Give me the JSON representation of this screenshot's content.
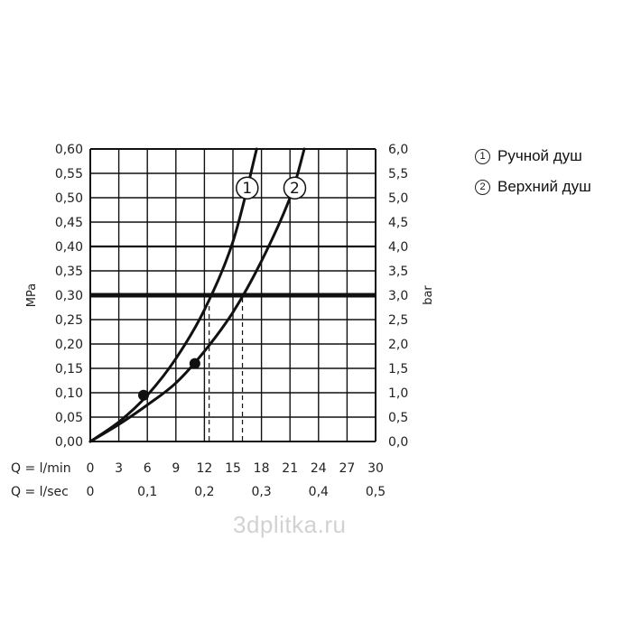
{
  "chart_data": {
    "type": "line",
    "ylabel_left": "MPa",
    "ylabel_right": "bar",
    "x_row1_label": "Q = l/min",
    "x_row2_label": "Q = l/sec",
    "x_ticks_lmin": [
      "0",
      "3",
      "6",
      "9",
      "12",
      "15",
      "18",
      "21",
      "24",
      "27",
      "30"
    ],
    "x_ticks_lsec": [
      {
        "v": 0,
        "label": "0"
      },
      {
        "v": 0.1,
        "label": "0,1"
      },
      {
        "v": 0.2,
        "label": "0,2"
      },
      {
        "v": 0.3,
        "label": "0,3"
      },
      {
        "v": 0.4,
        "label": "0,4"
      },
      {
        "v": 0.5,
        "label": "0,5"
      }
    ],
    "y_ticks_mpa": [
      "0,00",
      "0,05",
      "0,10",
      "0,15",
      "0,20",
      "0,25",
      "0,30",
      "0,35",
      "0,40",
      "0,45",
      "0,50",
      "0,55",
      "0,60"
    ],
    "y_ticks_bar": [
      "0,0",
      "0,5",
      "1,0",
      "1,5",
      "2,0",
      "2,5",
      "3,0",
      "3,5",
      "4,0",
      "4,5",
      "5,0",
      "5,5",
      "6,0"
    ],
    "xlim": [
      0,
      30
    ],
    "ylim": [
      0,
      0.6
    ],
    "major_y_lines": [
      0.4
    ],
    "reference_line_y": 0.3,
    "series": [
      {
        "name": "1",
        "x": [
          0,
          3,
          6,
          9,
          12,
          15,
          17.5
        ],
        "y": [
          0,
          0.04,
          0.095,
          0.17,
          0.27,
          0.41,
          0.6
        ],
        "marker": {
          "x": 5.6,
          "y": 0.095
        },
        "at_reference_x": 12.5,
        "label_at": {
          "x": 16.5,
          "y": 0.52
        }
      },
      {
        "name": "2",
        "x": [
          0,
          3,
          6,
          9,
          12,
          15,
          18,
          21,
          22.5
        ],
        "y": [
          0,
          0.035,
          0.075,
          0.12,
          0.185,
          0.265,
          0.37,
          0.5,
          0.6
        ],
        "marker": {
          "x": 11,
          "y": 0.16
        },
        "at_reference_x": 16,
        "label_at": {
          "x": 21.5,
          "y": 0.52
        }
      }
    ]
  },
  "legend": [
    {
      "mark": "1",
      "label": "Ручной душ"
    },
    {
      "mark": "2",
      "label": "Верхний душ"
    }
  ],
  "watermark": "3dplitka.ru",
  "colors": {
    "line": "#111111",
    "grid": "#111111",
    "dashed": "#111111"
  }
}
